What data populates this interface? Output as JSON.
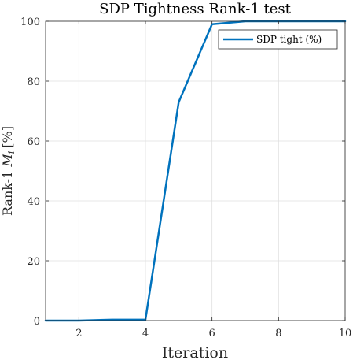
{
  "chart_data": {
    "type": "line",
    "title": "SDP Tightness Rank-1 test",
    "xlabel": "Iteration",
    "ylabel_prefix": "Rank-1",
    "ylabel_var": "M",
    "ylabel_sub": "i",
    "ylabel_suffix": "[%]",
    "xlim": [
      1,
      10
    ],
    "ylim": [
      0,
      100
    ],
    "xticks": [
      2,
      4,
      6,
      8,
      10
    ],
    "yticks": [
      0,
      20,
      40,
      60,
      80,
      100
    ],
    "grid": true,
    "legend_position": "top-right",
    "series": [
      {
        "name": "SDP tight (%)",
        "color": "#0072BD",
        "x": [
          1,
          2,
          3,
          4,
          5,
          6,
          7,
          8,
          9,
          10
        ],
        "y": [
          0,
          0,
          0.3,
          0.3,
          73,
          99,
          100,
          100,
          100,
          100
        ]
      }
    ]
  }
}
